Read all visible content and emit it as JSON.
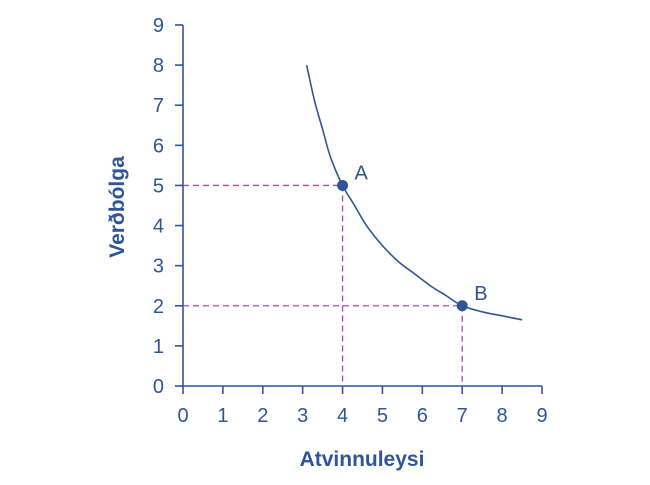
{
  "chart_data": {
    "type": "line",
    "xlabel": "Atvinnuleysi",
    "ylabel": "Verðbólga",
    "xlim": [
      0,
      9
    ],
    "ylim": [
      0,
      9
    ],
    "x_ticks": [
      "0",
      "1",
      "2",
      "3",
      "4",
      "5",
      "6",
      "7",
      "8",
      "9"
    ],
    "y_ticks": [
      "0",
      "1",
      "2",
      "3",
      "4",
      "5",
      "6",
      "7",
      "8",
      "9"
    ],
    "grid": false,
    "series": [
      {
        "x": [
          3.1,
          3.3,
          3.5,
          3.7,
          4.0,
          4.3,
          4.6,
          5.0,
          5.4,
          5.8,
          6.2,
          6.6,
          7.0,
          7.5,
          8.0,
          8.5
        ],
        "y": [
          8.0,
          7.1,
          6.4,
          5.7,
          5.0,
          4.5,
          4.0,
          3.5,
          3.1,
          2.8,
          2.5,
          2.25,
          2.0,
          1.85,
          1.75,
          1.65
        ]
      }
    ],
    "points": [
      {
        "label": "A",
        "x": 4,
        "y": 5
      },
      {
        "label": "B",
        "x": 7,
        "y": 2
      }
    ],
    "colors": {
      "axis": "#2f5597",
      "curve": "#2f5597",
      "point": "#2f5597",
      "guide": "#a64ca6"
    }
  }
}
